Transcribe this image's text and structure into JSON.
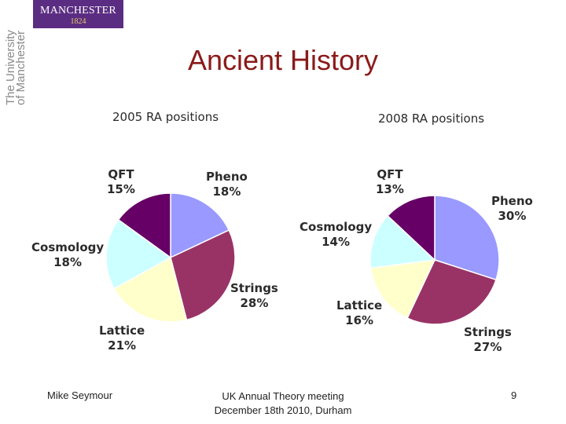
{
  "slide": {
    "title": "Ancient History",
    "logo": {
      "word": "MANCHESTER",
      "year": "1824",
      "side_line1": "The University",
      "side_line2": "of Manchester"
    },
    "footer": {
      "author": "Mike Seymour",
      "event_line1": "UK Annual Theory meeting",
      "event_line2": "December 18th 2010, Durham",
      "page": "9"
    }
  },
  "chart_data": [
    {
      "type": "pie",
      "title": "2005 RA positions",
      "slices": [
        {
          "name": "Pheno",
          "value": 18,
          "label": "18%",
          "color": "#9999ff"
        },
        {
          "name": "Strings",
          "value": 28,
          "label": "28%",
          "color": "#993366"
        },
        {
          "name": "Lattice",
          "value": 21,
          "label": "21%",
          "color": "#ffffcc"
        },
        {
          "name": "Cosmology",
          "value": 18,
          "label": "18%",
          "color": "#ccffff"
        },
        {
          "name": "QFT",
          "value": 15,
          "label": "15%",
          "color": "#660066"
        }
      ]
    },
    {
      "type": "pie",
      "title": "2008 RA positions",
      "slices": [
        {
          "name": "Pheno",
          "value": 30,
          "label": "30%",
          "color": "#9999ff"
        },
        {
          "name": "Strings",
          "value": 27,
          "label": "27%",
          "color": "#993366"
        },
        {
          "name": "Lattice",
          "value": 16,
          "label": "16%",
          "color": "#ffffcc"
        },
        {
          "name": "Cosmology",
          "value": 14,
          "label": "14%",
          "color": "#ccffff"
        },
        {
          "name": "QFT",
          "value": 13,
          "label": "13%",
          "color": "#660066"
        }
      ]
    }
  ]
}
